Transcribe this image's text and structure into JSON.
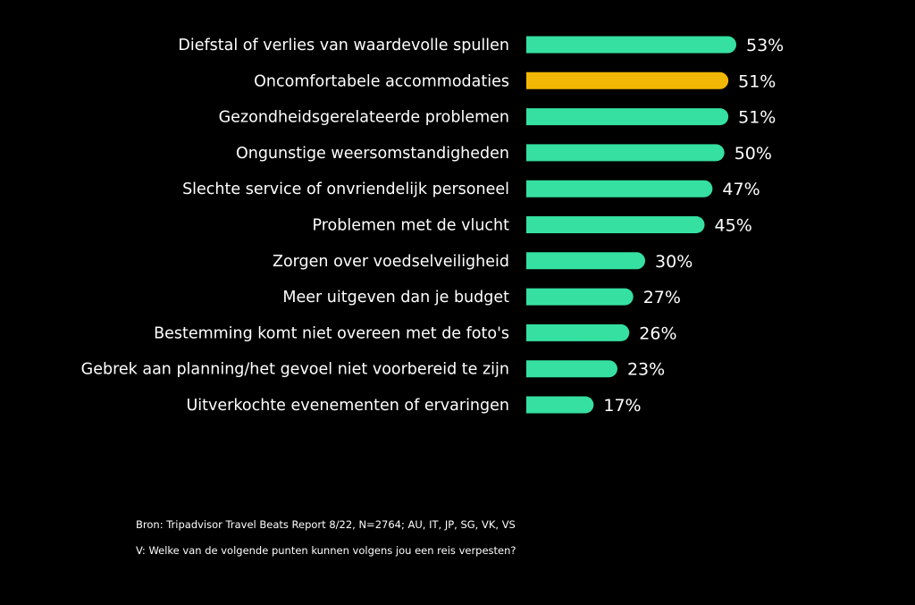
{
  "chart_data": {
    "type": "bar",
    "orientation": "horizontal",
    "categories": [
      "Diefstal of verlies van waardevolle spullen",
      "Oncomfortabele accommodaties",
      "Gezondheidsgerelateerde problemen",
      "Ongunstige weersomstandigheden",
      "Slechte service of onvriendelijk personeel",
      "Problemen met de vlucht",
      "Zorgen over voedselveiligheid",
      "Meer uitgeven dan je budget",
      "Bestemming komt niet overeen met de foto's",
      "Gebrek aan planning/het gevoel niet voorbereid te zijn",
      "Uitverkochte evenementen of ervaringen"
    ],
    "values": [
      53,
      51,
      51,
      50,
      47,
      45,
      30,
      27,
      26,
      23,
      17
    ],
    "value_labels": [
      "53%",
      "51%",
      "51%",
      "50%",
      "47%",
      "45%",
      "30%",
      "27%",
      "26%",
      "23%",
      "17%"
    ],
    "highlight_index": 1,
    "colors": {
      "default": "#35e0a1",
      "highlight": "#f2b705",
      "background": "#000000",
      "text": "#ffffff"
    },
    "title": "",
    "xlabel": "",
    "ylabel": "",
    "grid": false
  },
  "footnotes": {
    "source": "Bron: Tripadvisor Travel Beats Report 8/22, N=2764; AU, IT, JP, SG, VK, VS",
    "question": "V: Welke van de volgende punten kunnen volgens jou een reis verpesten?"
  }
}
